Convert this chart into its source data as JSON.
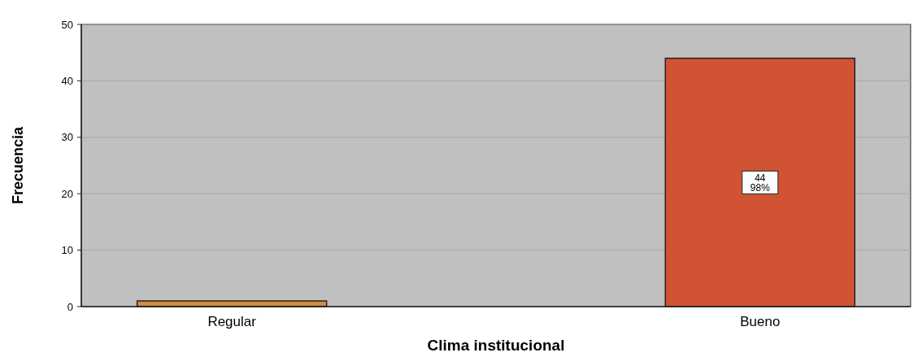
{
  "chart_data": {
    "type": "bar",
    "xlabel": "Clima institucional",
    "ylabel": "Frecuencia",
    "categories": [
      "Regular",
      "Bueno"
    ],
    "values": [
      1,
      44
    ],
    "colors": [
      "#d98a3e",
      "#d05433"
    ],
    "value_labels": [
      null,
      "44\n98%"
    ],
    "ylim": [
      0,
      50
    ],
    "yticks": [
      0,
      10,
      20,
      30,
      40,
      50
    ],
    "grid": "y"
  }
}
